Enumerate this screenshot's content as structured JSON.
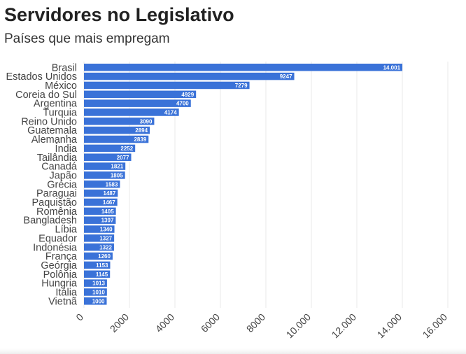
{
  "header": {
    "title": "Servidores no Legislativo",
    "subtitle": "Países que mais empregam"
  },
  "colors": {
    "bar": "#3a72d8",
    "grid": "#e9e9e9",
    "label_text": "#ffffff",
    "axis_text": "#444444"
  },
  "chart_data": {
    "type": "bar",
    "orientation": "horizontal",
    "title": "Servidores no Legislativo",
    "subtitle": "Países que mais empregam",
    "xlabel": "",
    "ylabel": "",
    "xlim": [
      0,
      16000
    ],
    "grid": true,
    "categories": [
      "Brasil",
      "Estados Unidos",
      "México",
      "Coreia do Sul",
      "Argentina",
      "Turquia",
      "Reino Unido",
      "Guatemala",
      "Alemanha",
      "Índia",
      "Tailândia",
      "Canadá",
      "Japão",
      "Grécia",
      "Paraguai",
      "Paquistão",
      "Romênia",
      "Bangladesh",
      "Líbia",
      "Equador",
      "Indonésia",
      "França",
      "Geórgia",
      "Polônia",
      "Hungria",
      "Itália",
      "Vietnã"
    ],
    "values": [
      14001,
      9247,
      7279,
      4929,
      4700,
      4174,
      3090,
      2894,
      2839,
      2252,
      2077,
      1821,
      1805,
      1583,
      1487,
      1467,
      1405,
      1397,
      1340,
      1327,
      1322,
      1260,
      1153,
      1145,
      1013,
      1010,
      1000
    ],
    "value_labels": [
      "14.001",
      "9247",
      "7279",
      "4929",
      "4700",
      "4174",
      "3090",
      "2894",
      "2839",
      "2252",
      "2077",
      "1821",
      "1805",
      "1583",
      "1487",
      "1467",
      "1405",
      "1397",
      "1340",
      "1327",
      "1322",
      "1260",
      "1153",
      "1145",
      "1013",
      "1010",
      "1000"
    ],
    "x_ticks": [
      0,
      2000,
      4000,
      6000,
      8000,
      10000,
      12000,
      14000,
      16000
    ],
    "x_tick_labels": [
      "0",
      "2000",
      "4000",
      "6000",
      "8000",
      "10.000",
      "12.000",
      "14.000",
      "16.000"
    ]
  }
}
